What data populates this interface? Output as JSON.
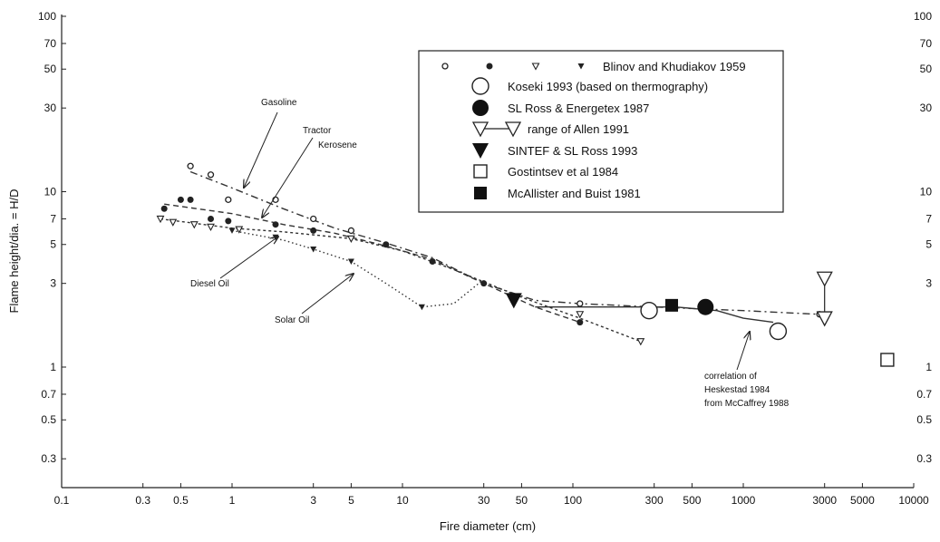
{
  "chart_data": {
    "type": "scatter",
    "xlabel": "Fire diameter (cm)",
    "ylabel": "Flame height/dia. = H/D",
    "xscale": "log",
    "yscale": "log",
    "xlim": [
      0.1,
      10000
    ],
    "ylim": [
      0.2,
      100
    ],
    "x_ticks": [
      0.1,
      0.3,
      0.5,
      1,
      3,
      5,
      10,
      30,
      50,
      100,
      300,
      500,
      1000,
      3000,
      5000,
      10000
    ],
    "x_tick_labels": [
      "0.1",
      "0.3",
      "0.5",
      "1",
      "3",
      "5",
      "10",
      "30",
      "50",
      "100",
      "300",
      "500",
      "1000",
      "3000",
      "5000",
      "10000"
    ],
    "y_ticks": [
      0.3,
      0.5,
      0.7,
      1,
      3,
      5,
      7,
      10,
      30,
      50,
      70,
      100
    ],
    "y_tick_labels": [
      "0.3",
      "0.5",
      "0.7",
      "1",
      "3",
      "5",
      "7",
      "10",
      "30",
      "50",
      "70",
      "100"
    ],
    "grid": false,
    "legend_position": "top-right",
    "legend": [
      {
        "label": "Blinov and Khudiakov 1959",
        "markers": [
          "small-open-circle",
          "small-filled-circle",
          "small-open-triangle",
          "small-filled-triangle"
        ]
      },
      {
        "label": "Koseki 1993 (based on thermography)",
        "markers": [
          "large-open-circle"
        ]
      },
      {
        "label": "SL Ross & Energetex 1987",
        "markers": [
          "large-filled-circle"
        ]
      },
      {
        "label": "range of Allen 1991",
        "markers": [
          "open-triangle-range"
        ]
      },
      {
        "label": "SINTEF & SL Ross 1993",
        "markers": [
          "large-filled-triangle"
        ]
      },
      {
        "label": "Gostintsev et al 1984",
        "markers": [
          "open-square"
        ]
      },
      {
        "label": "McAllister and Buist 1981",
        "markers": [
          "filled-square"
        ]
      }
    ],
    "series": [
      {
        "name": "Gasoline",
        "marker": "small-open-circle",
        "points": [
          [
            0.57,
            14
          ],
          [
            0.75,
            12.5
          ],
          [
            0.95,
            9
          ],
          [
            1.8,
            9
          ],
          [
            3,
            7
          ],
          [
            5,
            6
          ],
          [
            110,
            2.3
          ],
          [
            2800,
            2
          ]
        ]
      },
      {
        "name": "Kerosene",
        "marker": "small-filled-circle",
        "points": [
          [
            0.4,
            8
          ],
          [
            0.5,
            9
          ],
          [
            0.57,
            9
          ],
          [
            0.75,
            7
          ],
          [
            0.95,
            6.8
          ],
          [
            1.8,
            6.5
          ],
          [
            3,
            6
          ],
          [
            8,
            5
          ],
          [
            15,
            4
          ],
          [
            30,
            3
          ],
          [
            110,
            1.8
          ]
        ]
      },
      {
        "name": "Diesel Oil",
        "marker": "small-open-triangle",
        "points": [
          [
            0.38,
            7
          ],
          [
            0.45,
            6.7
          ],
          [
            0.6,
            6.5
          ],
          [
            0.75,
            6.3
          ],
          [
            1.1,
            6.1
          ],
          [
            5,
            5.4
          ],
          [
            110,
            2
          ],
          [
            250,
            1.4
          ]
        ]
      },
      {
        "name": "Solar Oil",
        "marker": "small-filled-triangle",
        "points": [
          [
            1,
            6
          ],
          [
            1.8,
            5.5
          ],
          [
            3,
            4.7
          ],
          [
            5,
            4
          ],
          [
            13,
            2.2
          ]
        ]
      },
      {
        "name": "Koseki 1993 (based on thermography)",
        "marker": "large-open-circle",
        "points": [
          [
            280,
            2.1
          ],
          [
            1600,
            1.6
          ]
        ]
      },
      {
        "name": "SL Ross & Energetex 1987",
        "marker": "large-filled-circle",
        "points": [
          [
            600,
            2.2
          ]
        ]
      },
      {
        "name": "range of Allen 1991",
        "marker": "open-triangle-range",
        "points": [
          [
            3000,
            3.2
          ],
          [
            3000,
            1.9
          ]
        ]
      },
      {
        "name": "SINTEF & SL Ross 1993",
        "marker": "large-filled-triangle",
        "points": [
          [
            45,
            2.4
          ]
        ]
      },
      {
        "name": "Gostintsev et al 1984",
        "marker": "open-square",
        "points": [
          [
            7000,
            1.1
          ]
        ]
      },
      {
        "name": "McAllister and Buist 1981",
        "marker": "filled-square",
        "points": [
          [
            380,
            2.25
          ]
        ]
      }
    ],
    "curves": [
      {
        "name": "Gasoline",
        "style": "dashdot",
        "points": [
          [
            0.57,
            13
          ],
          [
            1,
            10.5
          ],
          [
            2,
            8
          ],
          [
            4,
            6.2
          ],
          [
            8,
            5.1
          ],
          [
            15,
            4.2
          ],
          [
            30,
            3
          ],
          [
            60,
            2.4
          ],
          [
            110,
            2.3
          ],
          [
            300,
            2.2
          ],
          [
            1000,
            2.1
          ],
          [
            2800,
            2
          ]
        ]
      },
      {
        "name": "Kerosene",
        "style": "dashed",
        "points": [
          [
            0.4,
            8.5
          ],
          [
            1,
            7.5
          ],
          [
            2,
            6.5
          ],
          [
            4,
            5.8
          ],
          [
            8,
            4.9
          ],
          [
            15,
            4.1
          ],
          [
            30,
            3
          ],
          [
            60,
            2.2
          ],
          [
            110,
            1.8
          ]
        ]
      },
      {
        "name": "Diesel Oil",
        "style": "dashed-fine",
        "points": [
          [
            0.38,
            7
          ],
          [
            1,
            6.2
          ],
          [
            2,
            5.9
          ],
          [
            5,
            5.4
          ],
          [
            10,
            4.6
          ],
          [
            20,
            3.6
          ],
          [
            50,
            2.5
          ],
          [
            110,
            1.9
          ],
          [
            250,
            1.4
          ]
        ]
      },
      {
        "name": "Solar Oil",
        "style": "dotted",
        "points": [
          [
            1,
            6
          ],
          [
            2,
            5.3
          ],
          [
            3,
            4.7
          ],
          [
            5,
            4
          ],
          [
            8,
            3
          ],
          [
            13,
            2.2
          ],
          [
            20,
            2.3
          ],
          [
            28,
            3
          ]
        ]
      },
      {
        "name": "correlation of Heskestad 1984 from McCaffrey 1988",
        "style": "solid",
        "points": [
          [
            60,
            2.2
          ],
          [
            200,
            2.2
          ],
          [
            400,
            2.2
          ],
          [
            700,
            2.1
          ],
          [
            1000,
            1.9
          ],
          [
            1500,
            1.8
          ]
        ]
      }
    ],
    "annotations": [
      "Gasoline",
      "Tractor",
      "Kerosene",
      "Diesel Oil",
      "Solar Oil",
      "correlation of",
      "Heskestad 1984",
      "from McCaffrey 1988"
    ]
  }
}
